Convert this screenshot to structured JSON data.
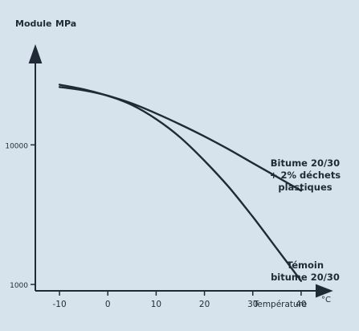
{
  "chart_data": {
    "type": "line",
    "ylabel": "Module",
    "yunit": "MPa",
    "xlabel": "Température",
    "xunit": "°C",
    "yscale": "log",
    "xticks": [
      "-10",
      "0",
      "10",
      "20",
      "30",
      "40"
    ],
    "yticks": [
      "10000",
      "1000"
    ],
    "xlim": [
      -15,
      45
    ],
    "ylim": [
      900,
      48000
    ],
    "grid": false,
    "series": [
      {
        "label_lines": [
          "Bitume 20/30",
          "+ 2% déchets",
          "plastiques"
        ],
        "x": [
          -10,
          -5,
          0,
          5,
          10,
          15,
          20,
          25,
          30,
          35,
          40
        ],
        "y": [
          27000,
          25000,
          22500,
          19800,
          16800,
          14000,
          11500,
          9300,
          7400,
          5900,
          4700
        ]
      },
      {
        "label_lines": [
          "Témoin",
          "bitume 20/30"
        ],
        "x": [
          -10,
          -5,
          0,
          5,
          10,
          15,
          20,
          25,
          30,
          35,
          40
        ],
        "y": [
          26000,
          24600,
          22500,
          19300,
          15300,
          11300,
          7700,
          5000,
          3050,
          1800,
          1060
        ]
      }
    ]
  }
}
